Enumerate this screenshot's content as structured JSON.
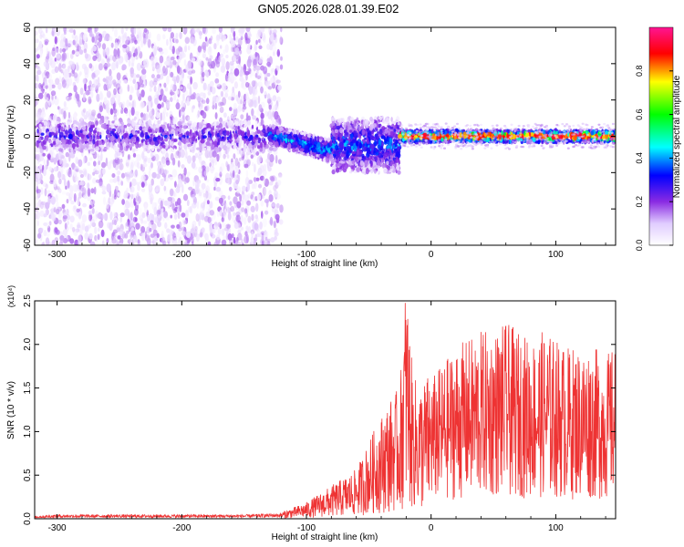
{
  "figure": {
    "title": "GN05.2026.028.01.39.E02"
  },
  "chart_data": [
    {
      "type": "heatmap",
      "panel": "spectrogram",
      "xlabel": "Height of straight line (km)",
      "ylabel": "Frequency (Hz)",
      "xlim": [
        -318,
        148
      ],
      "ylim": [
        -60,
        60
      ],
      "x_ticks": [
        -300,
        -200,
        -100,
        0,
        100
      ],
      "y_ticks": [
        -60,
        -40,
        -20,
        0,
        20,
        40,
        60
      ],
      "colorbar": {
        "label": "Normalized spectral amplitude",
        "range": [
          0,
          1
        ],
        "ticks": [
          "0.0",
          "0.2",
          "0.4",
          "0.6",
          "0.8"
        ],
        "colormap": [
          "#ffffff",
          "#e9d8ff",
          "#8a2be2",
          "#0000ff",
          "#00ffff",
          "#00ff00",
          "#ffff00",
          "#ff0000",
          "#ff1493"
        ]
      },
      "features": [
        {
          "x_range": [
            -318,
            -120
          ],
          "freq_range": [
            -60,
            60
          ],
          "amplitude": 0.15
        },
        {
          "x_range": [
            -318,
            -130
          ],
          "freq_range": [
            -8,
            8
          ],
          "amplitude": 0.3
        },
        {
          "x_range": [
            -130,
            -80
          ],
          "freq_range": [
            -15,
            8
          ],
          "amplitude": 0.45
        },
        {
          "x_range": [
            -80,
            -25
          ],
          "freq_range": [
            -20,
            10
          ],
          "amplitude": 0.4
        },
        {
          "x_range": [
            -25,
            148
          ],
          "freq_range": [
            -3,
            3
          ],
          "amplitude": 0.85
        }
      ]
    },
    {
      "type": "line",
      "panel": "snr",
      "xlabel": "Height of straight line (km)",
      "ylabel": "SNR (10 * v/v)",
      "y_multiplier": "(x10⁴)",
      "xlim": [
        -318,
        148
      ],
      "ylim": [
        0,
        2.5
      ],
      "x_ticks": [
        -300,
        -200,
        -100,
        0,
        100
      ],
      "y_ticks": [
        "0.0",
        "0.5",
        "1.0",
        "1.5",
        "2.0",
        "2.5"
      ],
      "color": "#ee3333",
      "series": [
        {
          "x": [
            -318,
            -300,
            -250,
            -200,
            -150,
            -120,
            -100,
            -80,
            -60,
            -45,
            -35,
            -25,
            -20,
            -15,
            -10,
            -5,
            0,
            10,
            20,
            30,
            40,
            50,
            60,
            70,
            80,
            90,
            100,
            110,
            120,
            130,
            140,
            148
          ],
          "y": [
            0.02,
            0.03,
            0.03,
            0.03,
            0.03,
            0.04,
            0.1,
            0.2,
            0.3,
            0.55,
            0.7,
            0.8,
            1.5,
            0.9,
            0.8,
            0.85,
            0.9,
            1.0,
            1.1,
            1.15,
            1.2,
            1.2,
            1.25,
            1.2,
            1.15,
            1.2,
            1.15,
            1.1,
            1.1,
            1.1,
            1.05,
            1.1
          ]
        }
      ]
    }
  ]
}
